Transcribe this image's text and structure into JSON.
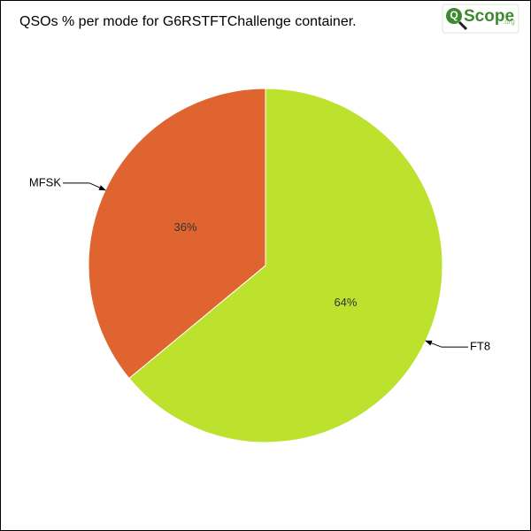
{
  "chart_data": {
    "type": "pie",
    "title": "QSOs % per mode for G6RSTFTChallenge container.",
    "categories": [
      "FT8",
      "MFSK"
    ],
    "values": [
      64,
      36
    ],
    "value_labels": [
      "64%",
      "36%"
    ],
    "colors": [
      "#bde22e",
      "#e06430"
    ]
  },
  "logo": {
    "mark": "Q",
    "text": "Scope",
    "suffix": ".org"
  }
}
